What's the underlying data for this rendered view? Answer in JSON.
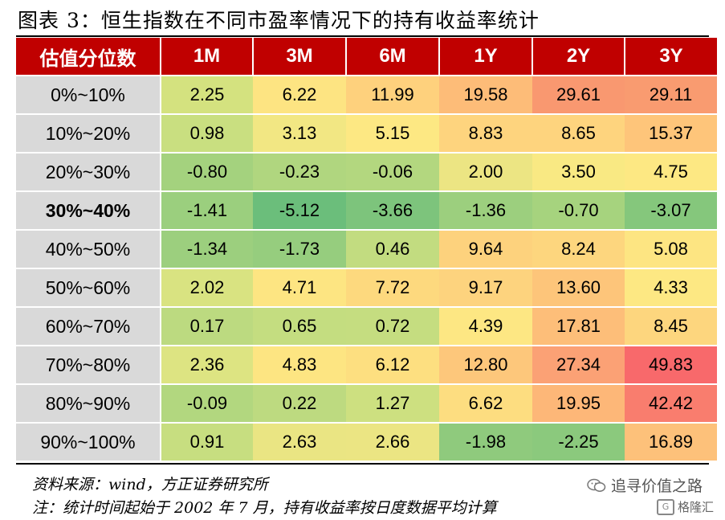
{
  "title": "图表 3：恒生指数在不同市盈率情况下的持有收益率统计",
  "table": {
    "header": [
      "估值分位数",
      "1M",
      "3M",
      "6M",
      "1Y",
      "2Y",
      "3Y"
    ],
    "rows": [
      {
        "label": "0%~10%",
        "bold": false,
        "values": [
          "2.25",
          "6.22",
          "11.99",
          "19.58",
          "29.61",
          "29.11"
        ],
        "colors": [
          "#d4e27f",
          "#fde482",
          "#fed17d",
          "#fdbc78",
          "#f99870",
          "#f99b70"
        ]
      },
      {
        "label": "10%~20%",
        "bold": false,
        "values": [
          "0.98",
          "3.13",
          "5.15",
          "8.83",
          "8.65",
          "15.37"
        ],
        "colors": [
          "#c9df80",
          "#f2e783",
          "#fde883",
          "#fed47e",
          "#fed47e",
          "#fec57a"
        ]
      },
      {
        "label": "20%~30%",
        "bold": false,
        "values": [
          "-0.80",
          "-0.23",
          "-0.06",
          "2.00",
          "3.50",
          "4.75"
        ],
        "colors": [
          "#a4d27e",
          "#b0d67f",
          "#b3d77f",
          "#ece583",
          "#f9e983",
          "#fde883"
        ]
      },
      {
        "label": "30%~40%",
        "bold": true,
        "values": [
          "-1.41",
          "-5.12",
          "-3.66",
          "-1.36",
          "-0.70",
          "-3.07"
        ],
        "colors": [
          "#9bcf7e",
          "#6bbe7b",
          "#7dc47c",
          "#9ccf7e",
          "#a6d37e",
          "#85c77c"
        ]
      },
      {
        "label": "40%~50%",
        "bold": false,
        "values": [
          "-1.34",
          "-1.73",
          "0.46",
          "9.64",
          "8.24",
          "5.08"
        ],
        "colors": [
          "#9ccf7e",
          "#96cd7e",
          "#c2dc80",
          "#fdd27d",
          "#fdd67e",
          "#fde582"
        ]
      },
      {
        "label": "50%~60%",
        "bold": false,
        "values": [
          "2.02",
          "4.71",
          "7.72",
          "9.17",
          "13.60",
          "4.33"
        ],
        "colors": [
          "#d9e381",
          "#fde582",
          "#fdd97e",
          "#fdd37e",
          "#fdc57a",
          "#fde883"
        ]
      },
      {
        "label": "60%~70%",
        "bold": false,
        "values": [
          "0.17",
          "0.65",
          "0.72",
          "4.39",
          "17.81",
          "8.45"
        ],
        "colors": [
          "#bcda80",
          "#c4dd80",
          "#c5dd80",
          "#fde783",
          "#fdbe79",
          "#fdd67e"
        ]
      },
      {
        "label": "70%~80%",
        "bold": false,
        "values": [
          "2.36",
          "4.83",
          "6.12",
          "12.80",
          "27.34",
          "49.83"
        ],
        "colors": [
          "#dde482",
          "#fde582",
          "#fddf80",
          "#fdc77b",
          "#fba175",
          "#f8696b"
        ]
      },
      {
        "label": "80%~90%",
        "bold": false,
        "values": [
          "-0.09",
          "0.22",
          "1.27",
          "6.62",
          "19.95",
          "42.42"
        ],
        "colors": [
          "#b2d77f",
          "#bdda80",
          "#cde080",
          "#fddd80",
          "#fdb778",
          "#f97d6e"
        ]
      },
      {
        "label": "90%~100%",
        "bold": false,
        "values": [
          "0.91",
          "2.63",
          "2.66",
          "-1.98",
          "-2.25",
          "16.89"
        ],
        "colors": [
          "#c7de80",
          "#eae583",
          "#ebe583",
          "#8fca7d",
          "#8bc97d",
          "#fdc17a"
        ]
      }
    ]
  },
  "notes": {
    "source": "资料来源：wind，方正证券研究所",
    "note": "注：统计时间起始于 2002 年 7 月，持有收益率按日度数据平均计算"
  },
  "watermark": {
    "primary": "追寻价值之路",
    "secondary": "格隆汇",
    "primary_icon": "wechat-icon",
    "secondary_icon": "gelonghui-logo-icon"
  }
}
